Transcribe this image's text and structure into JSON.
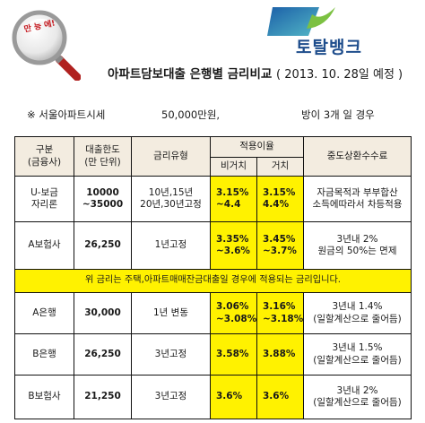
{
  "badge": "만 능 에!",
  "logo": "토탈뱅크",
  "title": "아파트담보대출 은행별 금리비교",
  "date": "( 2013. 10. 28일 예정 )",
  "info": {
    "note": "※  서울아파트시세",
    "value": "50,000만원,",
    "condition": "방이 3개  일  경우"
  },
  "table": {
    "headers": {
      "category": [
        "구분",
        "(금융사)"
      ],
      "limit": [
        "대출한도",
        "(만 단위)"
      ],
      "type": "금리유형",
      "rate": "적용이율",
      "rate_non_deferred": "비거치",
      "rate_deferred": "거치",
      "fee": "중도상환수수료"
    },
    "rows": [
      {
        "name": [
          "U-보금",
          "자리론"
        ],
        "limit": [
          "10000",
          "~35000"
        ],
        "type": [
          "10년,15년",
          "20년,30년고정"
        ],
        "rate1": [
          "3.15%",
          "~4.4"
        ],
        "rate2": [
          "3.15%",
          "4.4%"
        ],
        "fee": [
          "자금목적과 부부합산",
          "소득에따라서 차등적용"
        ]
      },
      {
        "name": [
          "A보험사"
        ],
        "limit": [
          "26,250"
        ],
        "type": [
          "1년고정"
        ],
        "rate1": [
          "3.35%",
          "~3.6%"
        ],
        "rate2": [
          "3.45%",
          "~3.7%"
        ],
        "fee": [
          "3년내 2%",
          "원금의 50%는 면제"
        ]
      }
    ],
    "note": "위 금리는 주택,아파트매매잔금대출일 경우에 적용되는 금리입니다.",
    "rows2": [
      {
        "name": [
          "A은행"
        ],
        "limit": [
          "30,000"
        ],
        "type": [
          "1년 변동"
        ],
        "rate1": [
          "3.06%",
          "~3.08%"
        ],
        "rate2": [
          "3.16%",
          "~3.18%"
        ],
        "fee": [
          "3년내 1.4%",
          "(일할계산으로 줄어듬)"
        ]
      },
      {
        "name": [
          "B은행"
        ],
        "limit": [
          "26,250"
        ],
        "type": [
          "3년고정"
        ],
        "rate1": [
          "3.58%"
        ],
        "rate2": [
          "3.88%"
        ],
        "fee": [
          "3년내 1.5%",
          "(일할계산으로 줄어듬)"
        ]
      },
      {
        "name": [
          "B보험사"
        ],
        "limit": [
          "21,250"
        ],
        "type": [
          "3년고정"
        ],
        "rate1": [
          "3.6%"
        ],
        "rate2": [
          "3.6%"
        ],
        "fee": [
          "3년내 2%",
          "(일할계산으로 줄어듬)"
        ]
      }
    ]
  }
}
